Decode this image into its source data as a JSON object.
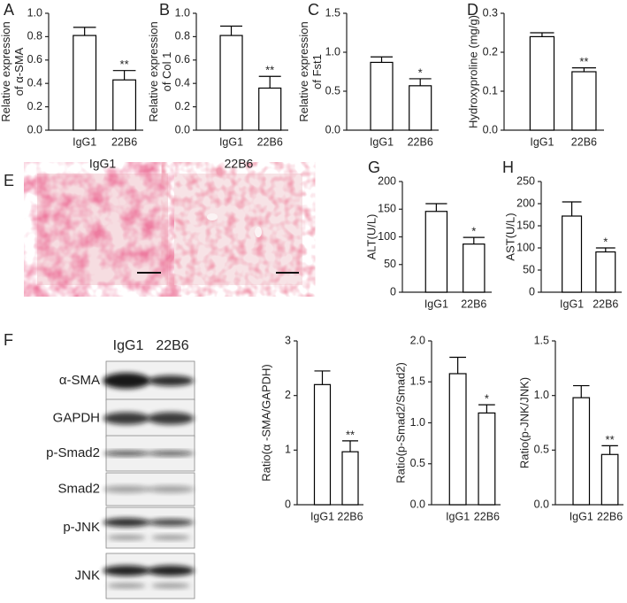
{
  "panel_labels": [
    "A",
    "B",
    "C",
    "D",
    "E",
    "G",
    "H",
    "F"
  ],
  "histology": {
    "labels": [
      "IgG1",
      "22B6"
    ]
  },
  "blot": {
    "lanes": [
      "IgG1",
      "22B6"
    ],
    "rows": [
      "α-SMA",
      "GAPDH",
      "p-Smad2",
      "Smad2",
      "p-JNK",
      "JNK"
    ]
  },
  "chart_data": [
    {
      "type": "bar",
      "ylabel": [
        "Relative expression",
        "of α-SMA"
      ],
      "categories": [
        "IgG1",
        "22B6"
      ],
      "values": [
        0.81,
        0.43
      ],
      "errors": [
        0.07,
        0.08
      ],
      "color": "#ffffff",
      "edgecolor": "#000000",
      "ylim": [
        0,
        1
      ],
      "yticks": [
        {
          "value": 0,
          "label": "0.0"
        },
        0.2,
        0.4,
        0.6,
        0.8,
        {
          "value": 1,
          "label": "1.0"
        }
      ],
      "annotations": [
        {
          "x": "22B6",
          "text": "**"
        }
      ]
    },
    {
      "type": "bar",
      "ylabel": [
        "Relative expression",
        "of Col 1"
      ],
      "categories": [
        "IgG1",
        "22B6"
      ],
      "values": [
        0.81,
        0.36
      ],
      "errors": [
        0.08,
        0.1
      ],
      "color": "#ffffff",
      "edgecolor": "#000000",
      "ylim": [
        0,
        1
      ],
      "yticks": [
        {
          "value": 0,
          "label": "0.0"
        },
        0.2,
        0.4,
        0.6,
        0.8,
        {
          "value": 1,
          "label": "1.0"
        }
      ],
      "annotations": [
        {
          "x": "22B6",
          "text": "**"
        }
      ]
    },
    {
      "type": "bar",
      "ylabel": [
        "Relative expression",
        "of Fst1"
      ],
      "categories": [
        "IgG1",
        "22B6"
      ],
      "values": [
        0.87,
        0.57
      ],
      "errors": [
        0.07,
        0.09
      ],
      "color": "#ffffff",
      "edgecolor": "#000000",
      "ylim": [
        0,
        1.5
      ],
      "yticks": [
        {
          "value": 0,
          "label": "0.0"
        },
        0.5,
        {
          "value": 1,
          "label": "1.0"
        },
        1.5
      ],
      "annotations": [
        {
          "x": "22B6",
          "text": "*"
        }
      ]
    },
    {
      "type": "bar",
      "ylabel": [
        "Hydroxyproline (mg/g)"
      ],
      "categories": [
        "IgG1",
        "22B6"
      ],
      "values": [
        0.24,
        0.15
      ],
      "errors": [
        0.01,
        0.01
      ],
      "color": "#ffffff",
      "edgecolor": "#000000",
      "ylim": [
        0,
        0.3
      ],
      "yticks": [
        {
          "value": 0,
          "label": "0.0"
        },
        0.1,
        0.2,
        0.3
      ],
      "annotations": [
        {
          "x": "22B6",
          "text": "**"
        }
      ]
    },
    {
      "type": "bar",
      "ylabel": [
        "ALT(U/L)"
      ],
      "categories": [
        "IgG1",
        "22B6"
      ],
      "values": [
        146,
        87
      ],
      "errors": [
        14,
        12
      ],
      "color": "#ffffff",
      "edgecolor": "#000000",
      "ylim": [
        0,
        200
      ],
      "yticks": [
        0,
        50,
        100,
        150,
        200
      ],
      "annotations": [
        {
          "x": "22B6",
          "text": "*"
        }
      ]
    },
    {
      "type": "bar",
      "ylabel": [
        "AST(U/L)"
      ],
      "categories": [
        "IgG1",
        "22B6"
      ],
      "values": [
        172,
        91
      ],
      "errors": [
        32,
        9
      ],
      "color": "#ffffff",
      "edgecolor": "#000000",
      "ylim": [
        0,
        250
      ],
      "yticks": [
        0,
        50,
        100,
        150,
        200,
        250
      ],
      "annotations": [
        {
          "x": "22B6",
          "text": "*"
        }
      ]
    },
    {
      "type": "bar",
      "ylabel": [
        "Ratio(α -SMA/GAPDH)"
      ],
      "categories": [
        "IgG1",
        "22B6"
      ],
      "values": [
        2.2,
        0.97
      ],
      "errors": [
        0.25,
        0.2
      ],
      "color": "#ffffff",
      "edgecolor": "#000000",
      "ylim": [
        0,
        3
      ],
      "yticks": [
        0,
        1,
        2,
        3
      ],
      "annotations": [
        {
          "x": "22B6",
          "text": "**"
        }
      ]
    },
    {
      "type": "bar",
      "ylabel": [
        "Ratio(p-Smad2/Smad2)"
      ],
      "categories": [
        "IgG1",
        "22B6"
      ],
      "values": [
        1.6,
        1.12
      ],
      "errors": [
        0.2,
        0.1
      ],
      "color": "#ffffff",
      "edgecolor": "#000000",
      "ylim": [
        0,
        2
      ],
      "yticks": [
        {
          "value": 0,
          "label": "0.0"
        },
        0.5,
        {
          "value": 1,
          "label": "1.0"
        },
        1.5,
        {
          "value": 2,
          "label": "2.0"
        }
      ],
      "annotations": [
        {
          "x": "22B6",
          "text": "*"
        }
      ]
    },
    {
      "type": "bar",
      "ylabel": [
        "Ratio(p-JNK/JNK)"
      ],
      "categories": [
        "IgG1",
        "22B6"
      ],
      "values": [
        0.98,
        0.46
      ],
      "errors": [
        0.11,
        0.08
      ],
      "color": "#ffffff",
      "edgecolor": "#000000",
      "ylim": [
        0,
        1.5
      ],
      "yticks": [
        {
          "value": 0,
          "label": "0.0"
        },
        0.5,
        {
          "value": 1,
          "label": "1.0"
        },
        1.5
      ],
      "annotations": [
        {
          "x": "22B6",
          "text": "**"
        }
      ]
    }
  ]
}
